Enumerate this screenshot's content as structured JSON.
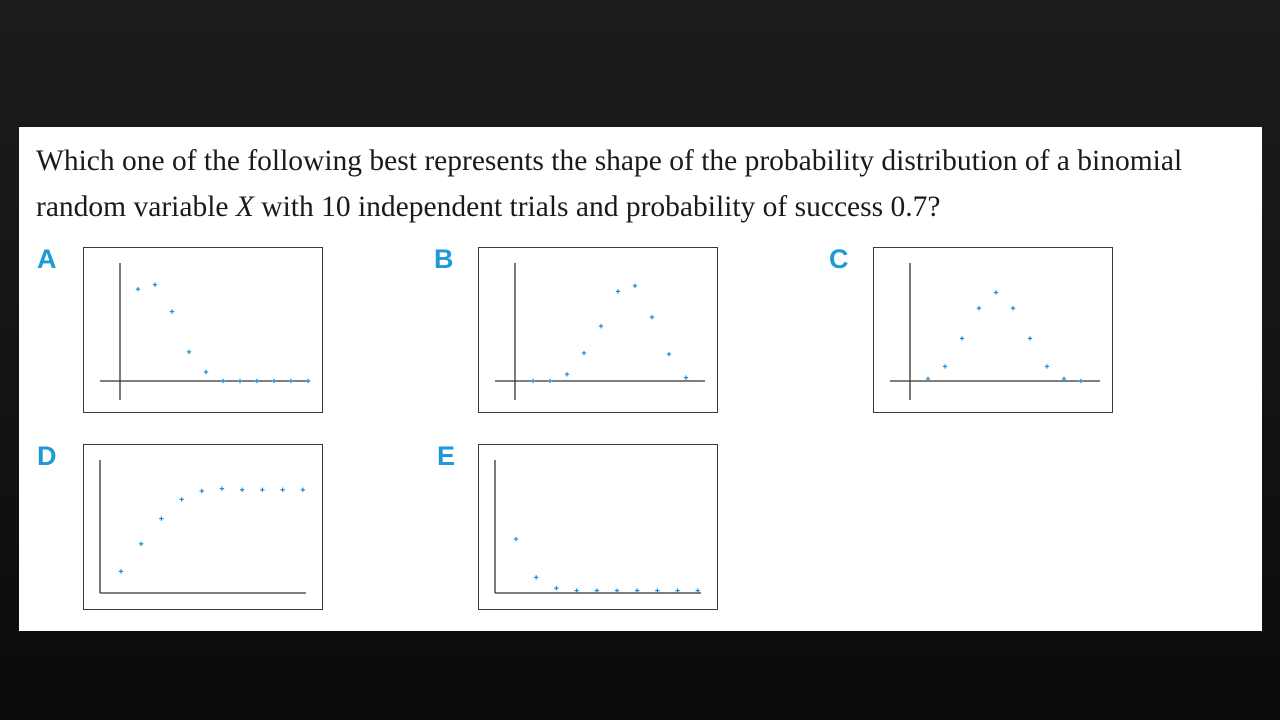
{
  "question": {
    "part1": "Which one of the following best represents the shape of the probability distribution of a binomial random variable ",
    "variable": "X",
    "part2": " with 10 independent trials and probability of success 0.7?"
  },
  "colors": {
    "accent": "#1e9ad6",
    "marker": "#1c8fd0",
    "panel": "#ffffff",
    "background": "#151515"
  },
  "chart_data": [
    {
      "label": "A",
      "type": "scatter",
      "x": [
        0,
        1,
        2,
        3,
        4,
        5,
        6,
        7,
        8,
        9,
        10
      ],
      "y": [
        0.82,
        0.86,
        0.62,
        0.26,
        0.08,
        0.0,
        0.0,
        0.0,
        0.0,
        0.0,
        0.0
      ],
      "axes": "cross"
    },
    {
      "label": "B",
      "type": "scatter",
      "x": [
        0,
        1,
        2,
        3,
        4,
        5,
        6,
        7,
        8,
        9,
        10
      ],
      "y": [
        0.0,
        0.0,
        0.06,
        0.25,
        0.49,
        0.8,
        0.85,
        0.57,
        0.24,
        0.03,
        null
      ],
      "axes": "cross"
    },
    {
      "label": "C",
      "type": "scatter",
      "x": [
        0,
        1,
        2,
        3,
        4,
        5,
        6,
        7,
        8,
        9,
        10
      ],
      "y": [
        0.02,
        0.13,
        0.38,
        0.65,
        0.79,
        0.65,
        0.38,
        0.13,
        0.02,
        0.0,
        null
      ],
      "axes": "cross"
    },
    {
      "label": "D",
      "type": "scatter",
      "x": [
        0,
        1,
        2,
        3,
        4,
        5,
        6,
        7,
        8,
        9,
        10
      ],
      "y": [
        0.18,
        0.41,
        0.62,
        0.78,
        0.85,
        0.87,
        0.86,
        0.86,
        0.86,
        0.86,
        null
      ],
      "axes": "corner"
    },
    {
      "label": "E",
      "type": "scatter",
      "x": [
        0,
        1,
        2,
        3,
        4,
        5,
        6,
        7,
        8,
        9,
        10
      ],
      "y": [
        0.45,
        0.13,
        0.04,
        0.02,
        0.02,
        0.02,
        0.02,
        0.02,
        0.02,
        0.02,
        null
      ],
      "axes": "corner"
    }
  ]
}
